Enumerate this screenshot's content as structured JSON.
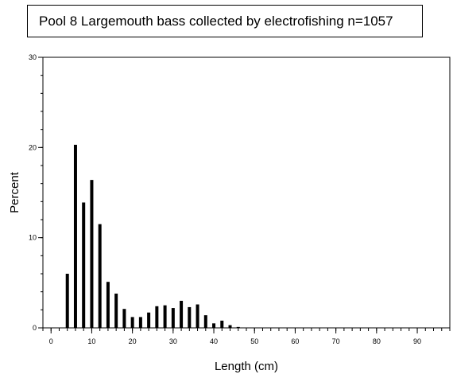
{
  "chart_data": {
    "type": "bar",
    "title": "Pool 8 Largemouth bass collected by electrofishing n=1057",
    "xlabel": "Length (cm)",
    "ylabel": "Percent",
    "xlim": [
      -2,
      98
    ],
    "ylim": [
      0,
      30
    ],
    "x_ticks": [
      0,
      10,
      20,
      30,
      40,
      50,
      60,
      70,
      80,
      90
    ],
    "y_ticks": [
      0,
      10,
      20,
      30
    ],
    "x_minor_step": 2,
    "y_minor_step": 2,
    "bar_color": "#000000",
    "x": [
      4,
      6,
      8,
      10,
      12,
      14,
      16,
      18,
      20,
      22,
      24,
      26,
      28,
      30,
      32,
      34,
      36,
      38,
      40,
      42,
      44,
      46
    ],
    "values": [
      6.0,
      20.3,
      13.9,
      16.4,
      11.5,
      5.1,
      3.8,
      2.1,
      1.2,
      1.2,
      1.7,
      2.4,
      2.5,
      2.2,
      3.0,
      2.3,
      2.6,
      1.4,
      0.5,
      0.8,
      0.3,
      0.1
    ]
  }
}
